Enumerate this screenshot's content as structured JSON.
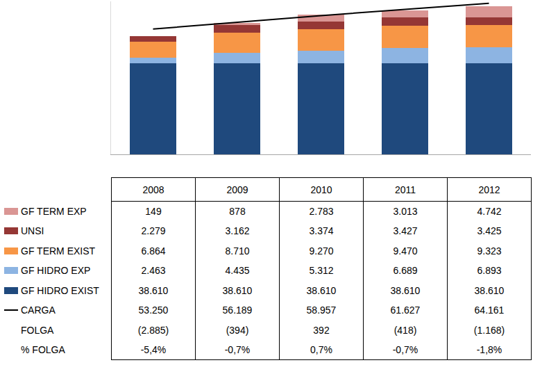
{
  "chart_data": {
    "type": "bar",
    "stacked": true,
    "grid": false,
    "tick_labels": false,
    "categories": [
      "2008",
      "2009",
      "2010",
      "2011",
      "2012"
    ],
    "ylim": [
      0,
      65000
    ],
    "yticks": [],
    "series": [
      {
        "name": "GF HIDRO EXIST",
        "color": "#1f497d",
        "values": [
          38610,
          38610,
          38610,
          38610,
          38610
        ],
        "value_labels": [
          "38.610",
          "38.610",
          "38.610",
          "38.610",
          "38.610"
        ]
      },
      {
        "name": "GF HIDRO EXP",
        "color": "#8db4e2",
        "values": [
          2463,
          4435,
          5312,
          6689,
          6893
        ],
        "value_labels": [
          "2.463",
          "4.435",
          "5.312",
          "6.689",
          "6.893"
        ]
      },
      {
        "name": "GF TERM EXIST",
        "color": "#f79646",
        "values": [
          6864,
          8710,
          9270,
          9470,
          9323
        ],
        "value_labels": [
          "6.864",
          "8.710",
          "9.270",
          "9.470",
          "9.323"
        ]
      },
      {
        "name": "UNSI",
        "color": "#953735",
        "values": [
          2279,
          3162,
          3374,
          3427,
          3425
        ],
        "value_labels": [
          "2.279",
          "3.162",
          "3.374",
          "3.427",
          "3.425"
        ]
      },
      {
        "name": "GF TERM EXP",
        "color": "#da9694",
        "values": [
          149,
          878,
          2783,
          3013,
          4742
        ],
        "value_labels": [
          "149",
          "878",
          "2.783",
          "3.013",
          "4.742"
        ]
      },
      {
        "name": "CARGA",
        "type": "line",
        "color": "#000000",
        "values": [
          53250,
          56189,
          58957,
          61627,
          64161
        ],
        "value_labels": [
          "53.250",
          "56.189",
          "58.957",
          "61.627",
          "64.161"
        ]
      }
    ]
  },
  "table": {
    "rows": [
      {
        "label": "FOLGA",
        "cells": [
          "(2.885)",
          "(394)",
          "392",
          "(418)",
          "(1.168)"
        ]
      },
      {
        "label": "% FOLGA",
        "cells": [
          "-5,4%",
          "-0,7%",
          "0,7%",
          "-0,7%",
          "-1,8%"
        ]
      }
    ]
  }
}
